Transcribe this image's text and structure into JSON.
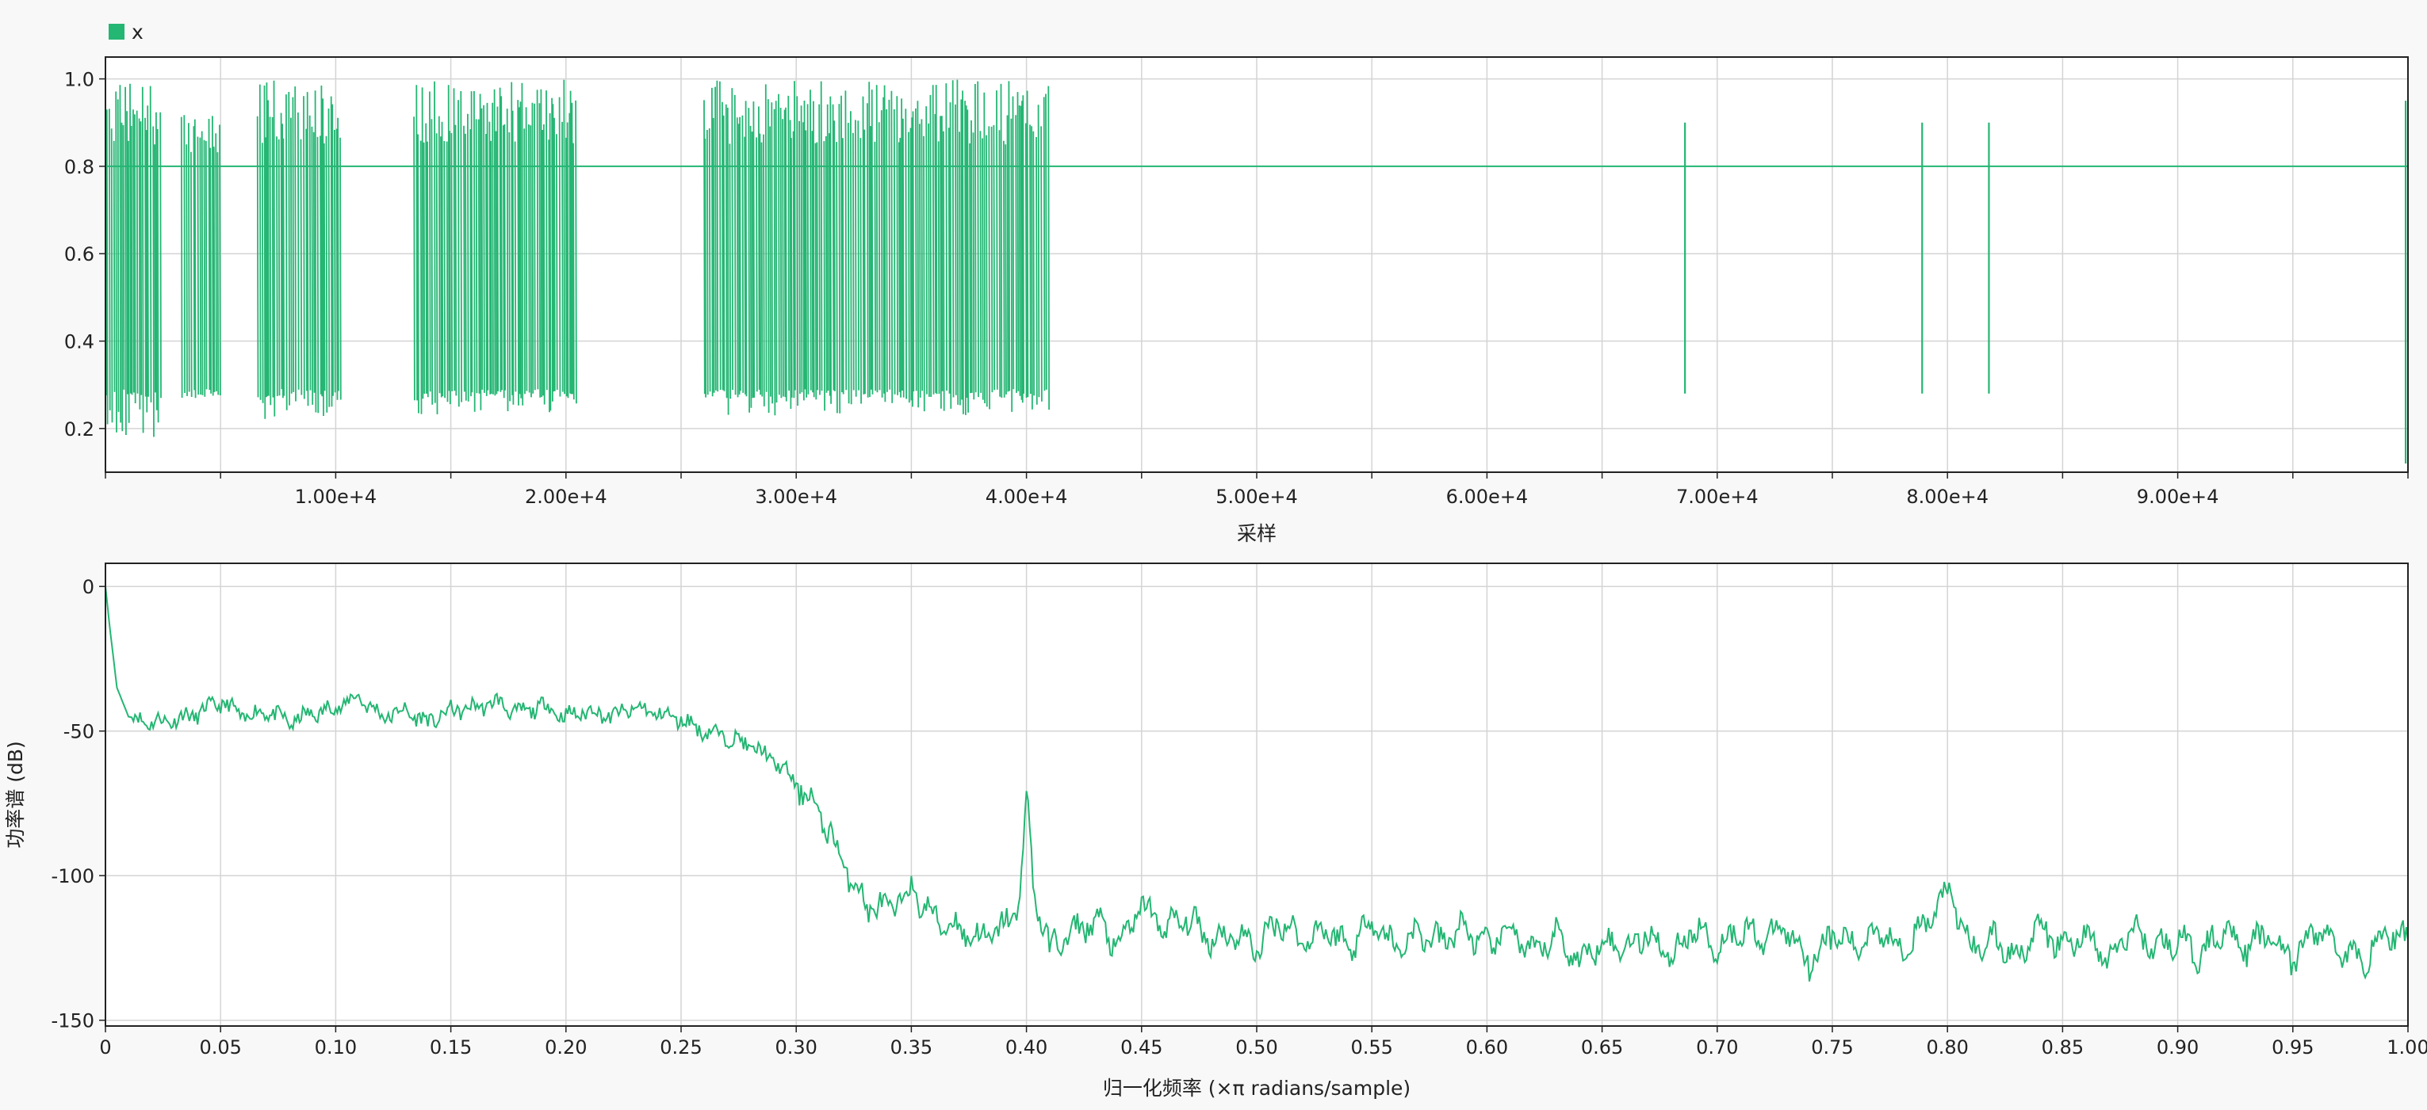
{
  "colors": {
    "series": "#24b673",
    "grid": "#d4d4d4",
    "axis": "#222222",
    "plot_bg": "#ffffff"
  },
  "chart_data": [
    {
      "type": "line",
      "legend": {
        "entries": [
          "x"
        ],
        "placement": "top-left"
      },
      "xlabel": "采样",
      "ylabel": "",
      "xlim": [
        0,
        100000
      ],
      "ylim": [
        0.1,
        1.05
      ],
      "x_ticks": [
        "1.00e+4",
        "2.00e+4",
        "3.00e+4",
        "4.00e+4",
        "5.00e+4",
        "6.00e+4",
        "7.00e+4",
        "8.00e+4",
        "9.00e+4"
      ],
      "x_tick_values": [
        10000,
        20000,
        30000,
        40000,
        50000,
        60000,
        70000,
        80000,
        90000
      ],
      "y_ticks": [
        "0.2",
        "0.4",
        "0.6",
        "0.8",
        "1.0"
      ],
      "y_tick_values": [
        0.2,
        0.4,
        0.6,
        0.8,
        1.0
      ],
      "grid": true,
      "baseline": 0.8,
      "bursts": [
        {
          "start": 0,
          "end": 2500,
          "low": 0.18,
          "high": 1.0
        },
        {
          "start": 3300,
          "end": 5000,
          "low": 0.28,
          "high": 0.92
        },
        {
          "start": 6600,
          "end": 10200,
          "low": 0.22,
          "high": 1.0
        },
        {
          "start": 13400,
          "end": 20500,
          "low": 0.23,
          "high": 1.0
        },
        {
          "start": 26000,
          "end": 41000,
          "low": 0.23,
          "high": 1.0
        }
      ],
      "spikes": [
        {
          "x": 68600,
          "low": 0.28,
          "high": 0.9
        },
        {
          "x": 78900,
          "low": 0.28,
          "high": 0.9
        },
        {
          "x": 81800,
          "low": 0.28,
          "high": 0.9
        },
        {
          "x": 99900,
          "low": 0.12,
          "high": 0.95
        }
      ]
    },
    {
      "type": "line",
      "xlabel": "归一化频率 (×π radians/sample)",
      "ylabel": "功率谱 (dB)",
      "xlim": [
        0,
        1
      ],
      "ylim": [
        -152,
        8
      ],
      "x_ticks": [
        "0",
        "0.05",
        "0.10",
        "0.15",
        "0.20",
        "0.25",
        "0.30",
        "0.35",
        "0.40",
        "0.45",
        "0.50",
        "0.55",
        "0.60",
        "0.65",
        "0.70",
        "0.75",
        "0.80",
        "0.85",
        "0.90",
        "0.95",
        "1.00"
      ],
      "x_tick_values": [
        0,
        0.05,
        0.1,
        0.15,
        0.2,
        0.25,
        0.3,
        0.35,
        0.4,
        0.45,
        0.5,
        0.55,
        0.6,
        0.65,
        0.7,
        0.75,
        0.8,
        0.85,
        0.9,
        0.95,
        1.0
      ],
      "y_ticks": [
        "0",
        "-50",
        "-100",
        "-150"
      ],
      "y_tick_values": [
        0,
        -50,
        -100,
        -150
      ],
      "grid": true,
      "series": [
        {
          "x": [
            0.0,
            0.002,
            0.005,
            0.01,
            0.02,
            0.03,
            0.04,
            0.05,
            0.06,
            0.07,
            0.08,
            0.09,
            0.1,
            0.11,
            0.12,
            0.13,
            0.14,
            0.15,
            0.16,
            0.17,
            0.18,
            0.19,
            0.2,
            0.21,
            0.22,
            0.23,
            0.24,
            0.25,
            0.26,
            0.27,
            0.28,
            0.29,
            0.3,
            0.31,
            0.32,
            0.33,
            0.34,
            0.35,
            0.36,
            0.37,
            0.38,
            0.39,
            0.397,
            0.4,
            0.403,
            0.41,
            0.42,
            0.43,
            0.44,
            0.45,
            0.46,
            0.47,
            0.48,
            0.49,
            0.5,
            0.51,
            0.52,
            0.53,
            0.54,
            0.55,
            0.56,
            0.57,
            0.58,
            0.59,
            0.6,
            0.61,
            0.62,
            0.63,
            0.64,
            0.65,
            0.66,
            0.67,
            0.68,
            0.69,
            0.7,
            0.71,
            0.72,
            0.73,
            0.74,
            0.75,
            0.76,
            0.77,
            0.78,
            0.79,
            0.8,
            0.81,
            0.82,
            0.83,
            0.84,
            0.85,
            0.86,
            0.87,
            0.88,
            0.89,
            0.9,
            0.91,
            0.92,
            0.93,
            0.94,
            0.95,
            0.96,
            0.97,
            0.98,
            0.99,
            1.0
          ],
          "y": [
            0,
            -15,
            -35,
            -45,
            -47,
            -46,
            -44,
            -40,
            -45,
            -43,
            -47,
            -44,
            -42,
            -38,
            -45,
            -43,
            -47,
            -43,
            -42,
            -40,
            -44,
            -41,
            -45,
            -43,
            -45,
            -42,
            -44,
            -46,
            -50,
            -52,
            -55,
            -60,
            -68,
            -78,
            -95,
            -110,
            -112,
            -105,
            -115,
            -118,
            -122,
            -118,
            -110,
            -70,
            -105,
            -125,
            -120,
            -115,
            -125,
            -110,
            -118,
            -115,
            -122,
            -120,
            -125,
            -115,
            -123,
            -118,
            -125,
            -115,
            -125,
            -120,
            -123,
            -118,
            -125,
            -118,
            -128,
            -120,
            -130,
            -122,
            -125,
            -120,
            -128,
            -118,
            -125,
            -118,
            -122,
            -118,
            -130,
            -120,
            -125,
            -118,
            -125,
            -118,
            -105,
            -125,
            -122,
            -128,
            -118,
            -125,
            -120,
            -130,
            -118,
            -125,
            -122,
            -128,
            -118,
            -125,
            -120,
            -130,
            -118,
            -125,
            -130,
            -120,
            -122
          ]
        }
      ]
    }
  ]
}
